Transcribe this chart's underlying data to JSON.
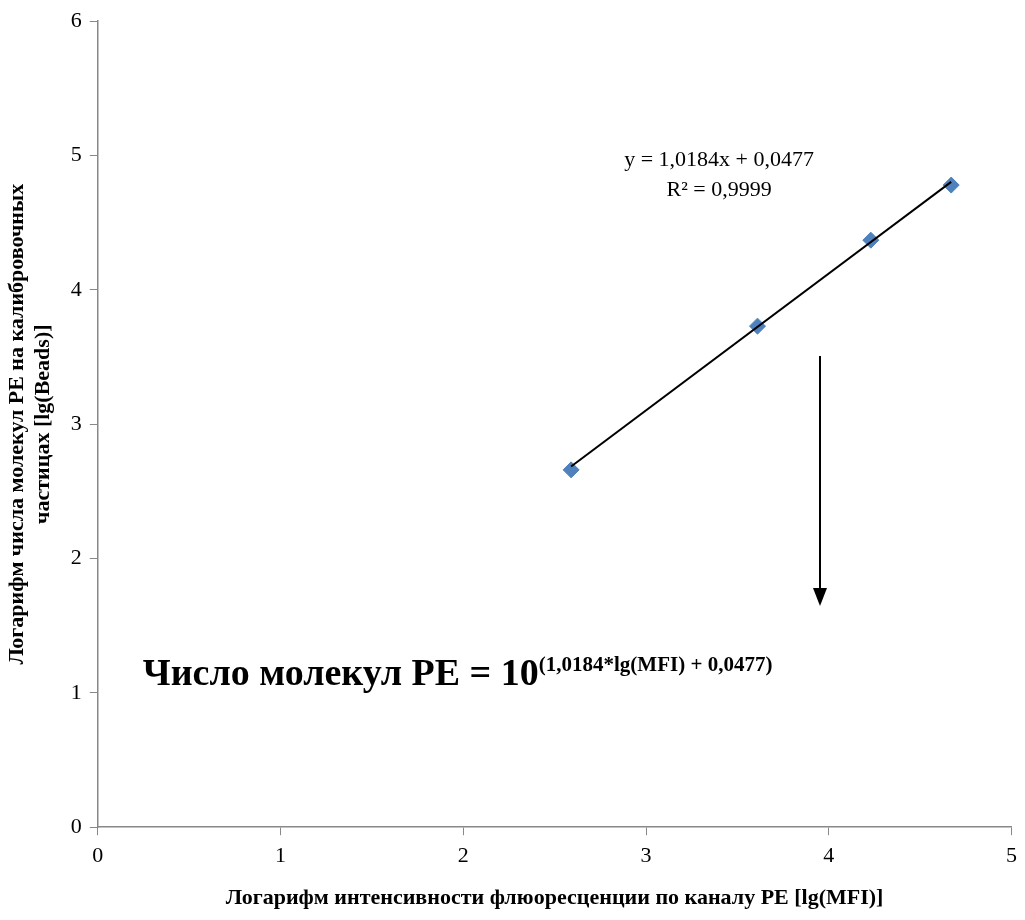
{
  "chart_data": {
    "type": "scatter",
    "xlabel": "Логарифм интенсивности флюоресценции по каналу PE [lg(MFI)]",
    "ylabel": "Логарифм числа молекул PE на калибровочных частицах [lg(Beads)]",
    "x": [
      2.59,
      3.61,
      4.23,
      4.67
    ],
    "series": [
      {
        "color": "#4f81bd",
        "values": [
          2.66,
          3.73,
          4.37,
          4.78
        ],
        "marker": "diamond"
      },
      {
        "type": "line",
        "color": "#000000",
        "x": [
          2.59,
          4.67
        ],
        "values": [
          2.685,
          4.804
        ],
        "marker": "none"
      }
    ],
    "xlim": [
      0,
      5
    ],
    "xticks": [
      0,
      1,
      2,
      3,
      4,
      5
    ],
    "ylim": [
      0,
      6
    ],
    "yticks": [
      0,
      1,
      2,
      3,
      4,
      5,
      6
    ],
    "grid": false,
    "legend": false,
    "annotations": [
      "y = 1,0184x + 0,0477",
      "R² = 0,9999",
      "Число молекул PE = 10$^{(1,0184*lg(MFI) + 0,0477)}$"
    ]
  }
}
